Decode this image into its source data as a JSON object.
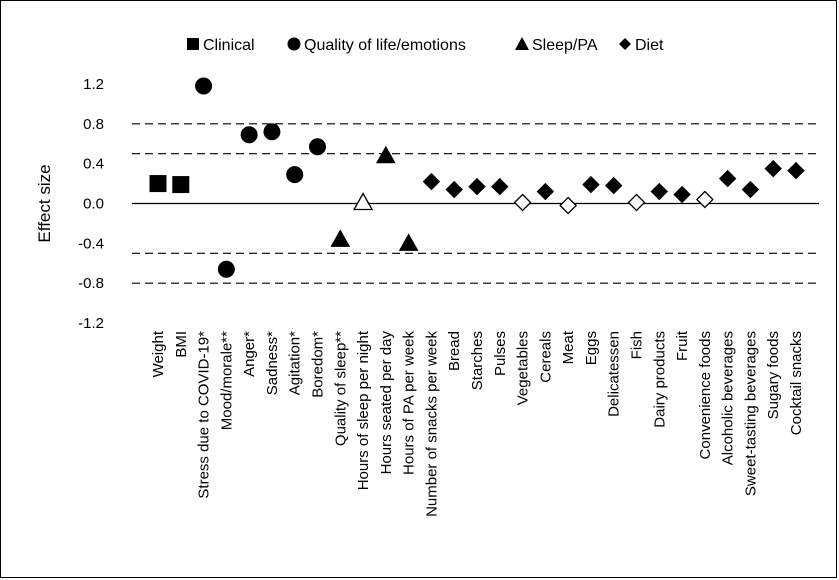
{
  "chart_data": {
    "type": "scatter",
    "ylabel": "Effect size",
    "ylim": [
      -1.2,
      1.2
    ],
    "yticks": [
      1.2,
      0.8,
      0.4,
      0.0,
      -0.4,
      -0.8,
      -1.2
    ],
    "ytick_labels": [
      "1.2",
      "0.8",
      "0.4",
      "0.0",
      "-0.4",
      "-0.8",
      "-1.2"
    ],
    "reference_lines": [
      {
        "y": 0.8,
        "style": "dashed"
      },
      {
        "y": 0.5,
        "style": "dashed"
      },
      {
        "y": -0.5,
        "style": "dashed"
      },
      {
        "y": -0.8,
        "style": "dashed"
      },
      {
        "y": 0.0,
        "style": "solid"
      }
    ],
    "legend": {
      "placement": "top",
      "entries": [
        {
          "name": "Clinical",
          "marker": "square"
        },
        {
          "name": "Quality of life/emotions",
          "marker": "circle"
        },
        {
          "name": "Sleep/PA",
          "marker": "triangle"
        },
        {
          "name": "Diet",
          "marker": "diamond"
        }
      ]
    },
    "categories": [
      "Weight",
      "BMI",
      "Stress due to COVID-19*",
      "Mood/morale**",
      "Anger*",
      "Sadness*",
      "Agitation*",
      "Boredom*",
      "Quality of sleep**",
      "Hours of sleep per night",
      "Hours seated per day",
      "Hours of PA per week",
      "Number of snacks per week",
      "Bread",
      "Starches",
      "Pulses",
      "Vegetables",
      "Cereals",
      "Meat",
      "Eggs",
      "Delicatessen",
      "Fish",
      "Dairy products",
      "Fruit",
      "Convenience foods",
      "Alcoholic beverages",
      "Sweet-tasting beverages",
      "Sugary foods",
      "Cocktail snacks"
    ],
    "series": [
      {
        "name": "Clinical",
        "marker": "square",
        "points": [
          {
            "category": "Weight",
            "y": 0.2,
            "filled": true
          },
          {
            "category": "BMI",
            "y": 0.19,
            "filled": true
          }
        ]
      },
      {
        "name": "Quality of life/emotions",
        "marker": "circle",
        "points": [
          {
            "category": "Stress due to COVID-19*",
            "y": 1.18,
            "filled": true
          },
          {
            "category": "Mood/morale**",
            "y": -0.66,
            "filled": true
          },
          {
            "category": "Anger*",
            "y": 0.69,
            "filled": true
          },
          {
            "category": "Sadness*",
            "y": 0.72,
            "filled": true
          },
          {
            "category": "Agitation*",
            "y": 0.29,
            "filled": true
          },
          {
            "category": "Boredom*",
            "y": 0.57,
            "filled": true
          }
        ]
      },
      {
        "name": "Sleep/PA",
        "marker": "triangle",
        "points": [
          {
            "category": "Quality of sleep**",
            "y": -0.36,
            "filled": true
          },
          {
            "category": "Hours of sleep per night",
            "y": 0.01,
            "filled": false
          },
          {
            "category": "Hours seated per day",
            "y": 0.48,
            "filled": true
          },
          {
            "category": "Hours of PA per week",
            "y": -0.4,
            "filled": true
          }
        ]
      },
      {
        "name": "Diet",
        "marker": "diamond",
        "points": [
          {
            "category": "Number of snacks per week",
            "y": 0.22,
            "filled": true
          },
          {
            "category": "Bread",
            "y": 0.14,
            "filled": true
          },
          {
            "category": "Starches",
            "y": 0.17,
            "filled": true
          },
          {
            "category": "Pulses",
            "y": 0.17,
            "filled": true
          },
          {
            "category": "Vegetables",
            "y": 0.01,
            "filled": false
          },
          {
            "category": "Cereals",
            "y": 0.12,
            "filled": true
          },
          {
            "category": "Meat",
            "y": -0.02,
            "filled": false
          },
          {
            "category": "Eggs",
            "y": 0.19,
            "filled": true
          },
          {
            "category": "Delicatessen",
            "y": 0.18,
            "filled": true
          },
          {
            "category": "Fish",
            "y": 0.01,
            "filled": false
          },
          {
            "category": "Dairy products",
            "y": 0.12,
            "filled": true
          },
          {
            "category": "Fruit",
            "y": 0.09,
            "filled": true
          },
          {
            "category": "Convenience foods",
            "y": 0.04,
            "filled": false
          },
          {
            "category": "Alcoholic beverages",
            "y": 0.25,
            "filled": true
          },
          {
            "category": "Sweet-tasting beverages",
            "y": 0.14,
            "filled": true
          },
          {
            "category": "Sugary foods",
            "y": 0.35,
            "filled": true
          },
          {
            "category": "Cocktail snacks",
            "y": 0.33,
            "filled": true
          }
        ]
      }
    ]
  }
}
